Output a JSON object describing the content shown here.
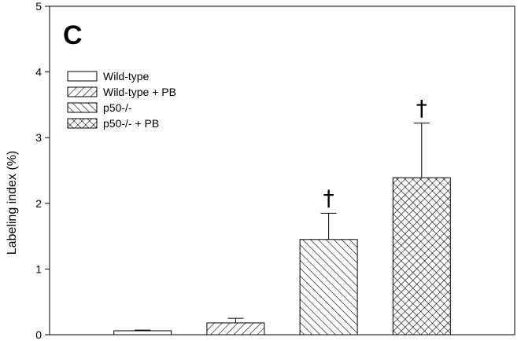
{
  "chart_data": {
    "type": "bar",
    "panel_label": "C",
    "ylabel": "Labeling index (%)",
    "xlabel": "",
    "ylim": [
      0,
      5
    ],
    "yticks": [
      0,
      1,
      2,
      3,
      4,
      5
    ],
    "grid": false,
    "legend_position": "top-left",
    "categories": [
      "Wild-type",
      "Wild-type + PB",
      "p50-/-",
      "p50-/- + PB"
    ],
    "series": [
      {
        "name": "Wild-type",
        "value": 0.06,
        "error": 0.01,
        "pattern": "none",
        "annotation": ""
      },
      {
        "name": "Wild-type + PB",
        "value": 0.18,
        "error": 0.07,
        "pattern": "diag-right",
        "annotation": ""
      },
      {
        "name": "p50-/-",
        "value": 1.45,
        "error": 0.4,
        "pattern": "diag-left",
        "annotation": "†"
      },
      {
        "name": "p50-/- + PB",
        "value": 2.39,
        "error": 0.83,
        "pattern": "cross",
        "annotation": "†"
      }
    ],
    "colors": {
      "bar_fill": "#ffffff",
      "stroke": "#000000",
      "hatch": "#000000"
    }
  }
}
